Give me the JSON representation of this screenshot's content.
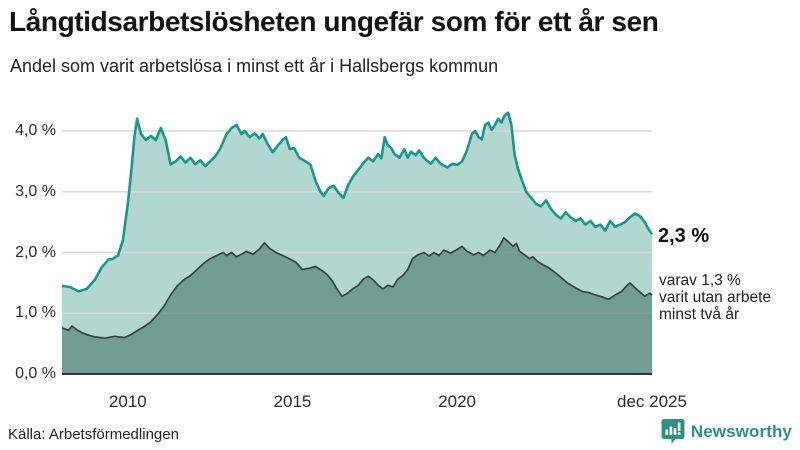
{
  "title": "Långtidsarbetslösheten ungefär som för ett år sen",
  "subtitle": "Andel som varit arbetslösa i minst ett år i Hallsbergs kommun",
  "annotation": {
    "primary": "2,3 %",
    "secondary_lines": [
      "varav 1,3 %",
      "varit utan arbete",
      "minst två år"
    ]
  },
  "footer": {
    "source": "Källa: Arbetsförmedlingen",
    "brand": "Newsworthy"
  },
  "colors": {
    "line_primary": "#18988a",
    "fill_primary": "#b2d7d0",
    "line_secondary": "#35433f",
    "fill_secondary": "rgba(60,110,100,0.55)",
    "grid": "#d8d8d8",
    "axis": "#333333",
    "brand": "#2f8f86"
  },
  "chart_data": {
    "type": "area",
    "title": "Långtidsarbetslösheten ungefär som för ett år sen",
    "subtitle": "Andel som varit arbetslösa i minst ett år i Hallsbergs kommun",
    "xlabel": "",
    "ylabel": "",
    "grid": true,
    "legend_position": "annotated-right",
    "x_range": [
      2008.0,
      2025.92
    ],
    "ylim": [
      0,
      4.5
    ],
    "yticks": [
      {
        "value": 4,
        "label": "4,0 %"
      },
      {
        "value": 3,
        "label": "3,0 %"
      },
      {
        "value": 2,
        "label": "2,0 %"
      },
      {
        "value": 1,
        "label": "1,0 %"
      },
      {
        "value": 0,
        "label": "0,0 %"
      }
    ],
    "xticks": [
      {
        "x": 2010,
        "label": "2010"
      },
      {
        "x": 2015,
        "label": "2015"
      },
      {
        "x": 2020,
        "label": "2020"
      },
      {
        "x": 2025.92,
        "label": "dec 2025"
      }
    ],
    "series": [
      {
        "name": "Arbetslösa minst ett år",
        "last_value_label": "2,3 %",
        "points": [
          [
            2008.0,
            1.45
          ],
          [
            2008.25,
            1.43
          ],
          [
            2008.5,
            1.36
          ],
          [
            2008.75,
            1.4
          ],
          [
            2009.0,
            1.55
          ],
          [
            2009.2,
            1.75
          ],
          [
            2009.4,
            1.88
          ],
          [
            2009.55,
            1.9
          ],
          [
            2009.7,
            1.95
          ],
          [
            2009.85,
            2.2
          ],
          [
            2010.0,
            2.8
          ],
          [
            2010.1,
            3.3
          ],
          [
            2010.2,
            3.9
          ],
          [
            2010.28,
            4.2
          ],
          [
            2010.4,
            3.95
          ],
          [
            2010.55,
            3.85
          ],
          [
            2010.7,
            3.92
          ],
          [
            2010.85,
            3.85
          ],
          [
            2011.0,
            4.05
          ],
          [
            2011.15,
            3.85
          ],
          [
            2011.3,
            3.45
          ],
          [
            2011.45,
            3.5
          ],
          [
            2011.6,
            3.58
          ],
          [
            2011.75,
            3.48
          ],
          [
            2011.9,
            3.56
          ],
          [
            2012.05,
            3.45
          ],
          [
            2012.2,
            3.52
          ],
          [
            2012.35,
            3.42
          ],
          [
            2012.5,
            3.5
          ],
          [
            2012.65,
            3.58
          ],
          [
            2012.8,
            3.7
          ],
          [
            2013.0,
            3.95
          ],
          [
            2013.15,
            4.05
          ],
          [
            2013.3,
            4.1
          ],
          [
            2013.45,
            3.95
          ],
          [
            2013.55,
            4.0
          ],
          [
            2013.7,
            3.9
          ],
          [
            2013.85,
            3.96
          ],
          [
            2014.0,
            3.88
          ],
          [
            2014.1,
            3.95
          ],
          [
            2014.25,
            3.78
          ],
          [
            2014.4,
            3.65
          ],
          [
            2014.55,
            3.76
          ],
          [
            2014.7,
            3.85
          ],
          [
            2014.8,
            3.9
          ],
          [
            2014.92,
            3.7
          ],
          [
            2015.05,
            3.72
          ],
          [
            2015.2,
            3.56
          ],
          [
            2015.4,
            3.5
          ],
          [
            2015.55,
            3.44
          ],
          [
            2015.7,
            3.18
          ],
          [
            2015.85,
            3.0
          ],
          [
            2015.95,
            2.93
          ],
          [
            2016.1,
            3.06
          ],
          [
            2016.25,
            3.1
          ],
          [
            2016.4,
            2.98
          ],
          [
            2016.55,
            2.9
          ],
          [
            2016.7,
            3.12
          ],
          [
            2016.85,
            3.26
          ],
          [
            2017.0,
            3.36
          ],
          [
            2017.15,
            3.47
          ],
          [
            2017.3,
            3.56
          ],
          [
            2017.45,
            3.5
          ],
          [
            2017.6,
            3.62
          ],
          [
            2017.7,
            3.55
          ],
          [
            2017.8,
            3.9
          ],
          [
            2017.9,
            3.76
          ],
          [
            2018.0,
            3.72
          ],
          [
            2018.1,
            3.62
          ],
          [
            2018.25,
            3.56
          ],
          [
            2018.4,
            3.7
          ],
          [
            2018.5,
            3.56
          ],
          [
            2018.6,
            3.66
          ],
          [
            2018.75,
            3.6
          ],
          [
            2018.85,
            3.68
          ],
          [
            2019.0,
            3.55
          ],
          [
            2019.2,
            3.46
          ],
          [
            2019.35,
            3.56
          ],
          [
            2019.5,
            3.46
          ],
          [
            2019.7,
            3.4
          ],
          [
            2019.85,
            3.46
          ],
          [
            2020.0,
            3.44
          ],
          [
            2020.15,
            3.5
          ],
          [
            2020.3,
            3.68
          ],
          [
            2020.45,
            3.95
          ],
          [
            2020.55,
            4.0
          ],
          [
            2020.65,
            3.9
          ],
          [
            2020.75,
            3.86
          ],
          [
            2020.85,
            4.1
          ],
          [
            2020.95,
            4.14
          ],
          [
            2021.05,
            4.02
          ],
          [
            2021.15,
            4.1
          ],
          [
            2021.25,
            4.2
          ],
          [
            2021.35,
            4.14
          ],
          [
            2021.45,
            4.26
          ],
          [
            2021.55,
            4.3
          ],
          [
            2021.65,
            4.1
          ],
          [
            2021.75,
            3.6
          ],
          [
            2021.85,
            3.38
          ],
          [
            2021.95,
            3.22
          ],
          [
            2022.1,
            3.0
          ],
          [
            2022.25,
            2.9
          ],
          [
            2022.4,
            2.8
          ],
          [
            2022.55,
            2.76
          ],
          [
            2022.7,
            2.86
          ],
          [
            2022.85,
            2.72
          ],
          [
            2023.0,
            2.62
          ],
          [
            2023.15,
            2.56
          ],
          [
            2023.3,
            2.66
          ],
          [
            2023.45,
            2.58
          ],
          [
            2023.6,
            2.52
          ],
          [
            2023.75,
            2.56
          ],
          [
            2023.9,
            2.46
          ],
          [
            2024.05,
            2.52
          ],
          [
            2024.2,
            2.42
          ],
          [
            2024.35,
            2.46
          ],
          [
            2024.5,
            2.36
          ],
          [
            2024.65,
            2.52
          ],
          [
            2024.8,
            2.42
          ],
          [
            2024.95,
            2.46
          ],
          [
            2025.1,
            2.5
          ],
          [
            2025.25,
            2.58
          ],
          [
            2025.4,
            2.64
          ],
          [
            2025.55,
            2.6
          ],
          [
            2025.7,
            2.5
          ],
          [
            2025.8,
            2.4
          ],
          [
            2025.92,
            2.3
          ]
        ]
      },
      {
        "name": "varav utan arbete minst två år",
        "last_value_label": "1,3 %",
        "points": [
          [
            2008.0,
            0.76
          ],
          [
            2008.2,
            0.72
          ],
          [
            2008.3,
            0.79
          ],
          [
            2008.45,
            0.73
          ],
          [
            2008.6,
            0.68
          ],
          [
            2008.8,
            0.64
          ],
          [
            2009.0,
            0.61
          ],
          [
            2009.3,
            0.59
          ],
          [
            2009.6,
            0.62
          ],
          [
            2009.9,
            0.6
          ],
          [
            2010.1,
            0.65
          ],
          [
            2010.3,
            0.72
          ],
          [
            2010.5,
            0.78
          ],
          [
            2010.7,
            0.86
          ],
          [
            2010.9,
            0.98
          ],
          [
            2011.1,
            1.12
          ],
          [
            2011.3,
            1.3
          ],
          [
            2011.5,
            1.45
          ],
          [
            2011.7,
            1.55
          ],
          [
            2011.9,
            1.62
          ],
          [
            2012.1,
            1.72
          ],
          [
            2012.3,
            1.82
          ],
          [
            2012.5,
            1.9
          ],
          [
            2012.7,
            1.95
          ],
          [
            2012.9,
            2.0
          ],
          [
            2013.0,
            1.95
          ],
          [
            2013.15,
            2.0
          ],
          [
            2013.3,
            1.93
          ],
          [
            2013.45,
            1.97
          ],
          [
            2013.6,
            2.02
          ],
          [
            2013.8,
            1.97
          ],
          [
            2014.0,
            2.06
          ],
          [
            2014.15,
            2.16
          ],
          [
            2014.3,
            2.07
          ],
          [
            2014.5,
            2.0
          ],
          [
            2014.7,
            1.95
          ],
          [
            2014.9,
            1.9
          ],
          [
            2015.1,
            1.84
          ],
          [
            2015.3,
            1.72
          ],
          [
            2015.5,
            1.74
          ],
          [
            2015.7,
            1.77
          ],
          [
            2015.9,
            1.7
          ],
          [
            2016.05,
            1.64
          ],
          [
            2016.2,
            1.54
          ],
          [
            2016.35,
            1.4
          ],
          [
            2016.5,
            1.28
          ],
          [
            2016.65,
            1.32
          ],
          [
            2016.8,
            1.39
          ],
          [
            2017.0,
            1.46
          ],
          [
            2017.15,
            1.56
          ],
          [
            2017.3,
            1.61
          ],
          [
            2017.45,
            1.55
          ],
          [
            2017.6,
            1.46
          ],
          [
            2017.75,
            1.4
          ],
          [
            2017.9,
            1.46
          ],
          [
            2018.05,
            1.43
          ],
          [
            2018.2,
            1.56
          ],
          [
            2018.35,
            1.62
          ],
          [
            2018.5,
            1.72
          ],
          [
            2018.65,
            1.9
          ],
          [
            2018.8,
            1.96
          ],
          [
            2019.0,
            2.0
          ],
          [
            2019.15,
            1.94
          ],
          [
            2019.3,
            2.0
          ],
          [
            2019.45,
            1.95
          ],
          [
            2019.6,
            2.04
          ],
          [
            2019.8,
            1.99
          ],
          [
            2020.0,
            2.05
          ],
          [
            2020.15,
            2.1
          ],
          [
            2020.3,
            2.02
          ],
          [
            2020.5,
            1.96
          ],
          [
            2020.65,
            2.0
          ],
          [
            2020.8,
            1.95
          ],
          [
            2021.0,
            2.04
          ],
          [
            2021.15,
            2.0
          ],
          [
            2021.3,
            2.12
          ],
          [
            2021.42,
            2.24
          ],
          [
            2021.55,
            2.18
          ],
          [
            2021.7,
            2.1
          ],
          [
            2021.8,
            2.15
          ],
          [
            2021.9,
            2.02
          ],
          [
            2022.05,
            1.96
          ],
          [
            2022.2,
            1.9
          ],
          [
            2022.3,
            1.93
          ],
          [
            2022.45,
            1.85
          ],
          [
            2022.6,
            1.8
          ],
          [
            2022.75,
            1.76
          ],
          [
            2022.9,
            1.7
          ],
          [
            2023.05,
            1.64
          ],
          [
            2023.2,
            1.57
          ],
          [
            2023.35,
            1.5
          ],
          [
            2023.5,
            1.45
          ],
          [
            2023.65,
            1.4
          ],
          [
            2023.8,
            1.36
          ],
          [
            2024.0,
            1.34
          ],
          [
            2024.2,
            1.3
          ],
          [
            2024.4,
            1.27
          ],
          [
            2024.6,
            1.23
          ],
          [
            2024.8,
            1.3
          ],
          [
            2025.0,
            1.36
          ],
          [
            2025.15,
            1.45
          ],
          [
            2025.25,
            1.5
          ],
          [
            2025.4,
            1.42
          ],
          [
            2025.55,
            1.35
          ],
          [
            2025.7,
            1.28
          ],
          [
            2025.85,
            1.33
          ],
          [
            2025.92,
            1.3
          ]
        ]
      }
    ]
  }
}
